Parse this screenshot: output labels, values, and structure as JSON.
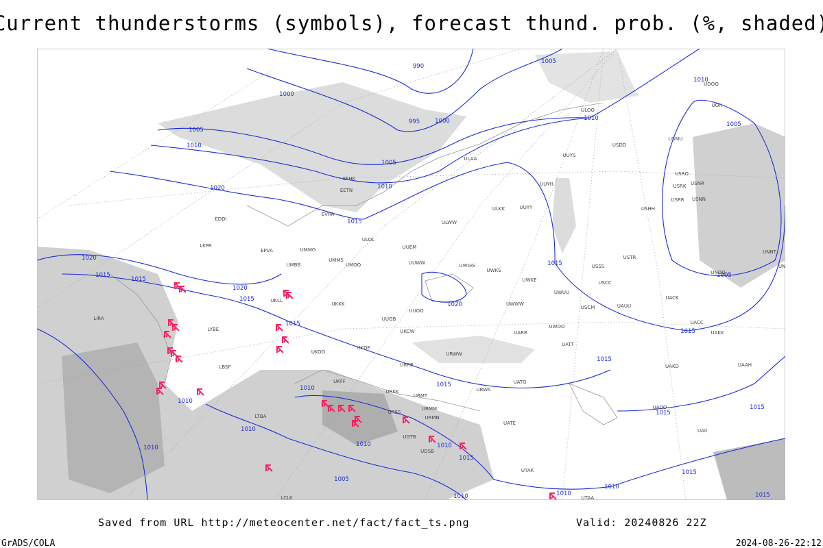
{
  "title": "Current thunderstorms (symbols), forecast thund. prob. (%, shaded)",
  "isobar_labels": [
    "990",
    "1005",
    "1010",
    "1000",
    "995",
    "1000",
    "1010",
    "1005",
    "1010",
    "1005",
    "1005",
    "1010",
    "1020",
    "1015",
    "1020",
    "1015",
    "1015",
    "1020",
    "1015",
    "1015",
    "1005",
    "1020",
    "1015",
    "1015",
    "1015",
    "1010",
    "1015",
    "1010",
    "1015",
    "1015",
    "1010",
    "1010",
    "1010",
    "1015",
    "1010",
    "1005",
    "1010",
    "1010",
    "1010",
    "1015",
    "1015"
  ],
  "stations": [
    "UUYY",
    "ULKK",
    "ULWW",
    "ULOL",
    "UUEM",
    "UMMG",
    "EPVA",
    "UMMS",
    "UMOO",
    "UUWW",
    "UWGG",
    "UWKS",
    "UMBB",
    "UKLL",
    "UKKK",
    "UUOO",
    "UWWW",
    "UWKE",
    "UWUU",
    "USCM",
    "USCC",
    "USSS",
    "USTR",
    "UACC",
    "UAKK",
    "UACK",
    "UAUU",
    "UWOO",
    "UATT",
    "UARR",
    "URWW",
    "UKCW",
    "UUOB",
    "UKOO",
    "UKDE",
    "URRR",
    "UATG",
    "URWA",
    "UATE",
    "UTAK",
    "UTAA",
    "UAKD",
    "UAOO",
    "UAII",
    "UAAH",
    "UNNT",
    "UNBB",
    "UNOO",
    "USRR",
    "USRK",
    "USNN",
    "USNR",
    "USRO",
    "USHH",
    "USMU",
    "USDD",
    "UUYS",
    "UUYH",
    "ULOO",
    "UOOO",
    "UOII",
    "ULAA",
    "EFHK",
    "EETN",
    "EVRA",
    "EDDI",
    "LKPR",
    "LIRA",
    "LYBE",
    "LBSF",
    "LTBA",
    "LCLK",
    "UGTB",
    "UDSB",
    "URMM",
    "URMT",
    "URMN",
    "URSS",
    "URKK",
    "UKFF"
  ],
  "footer": {
    "source": "Saved from URL http://meteocenter.net/fact/fact_ts.png",
    "valid": "Valid: 20240826 22Z",
    "software": "GrADS/COLA",
    "timestamp": "2024-08-26-22:12"
  }
}
